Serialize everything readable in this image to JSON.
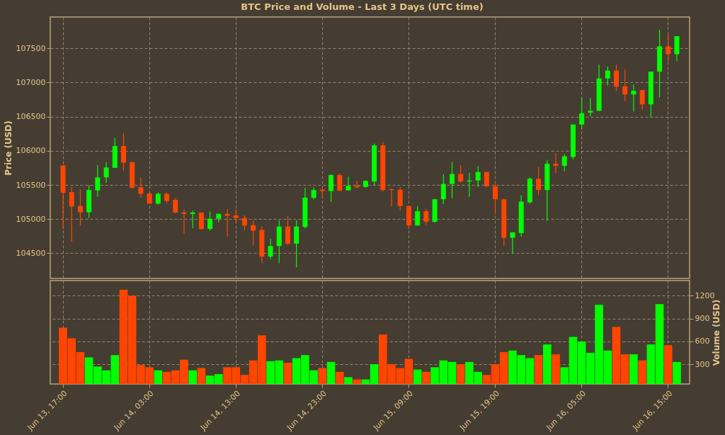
{
  "chart_data": [
    {
      "type": "candlestick",
      "title": "BTC Price and Volume - Last 3 Days (UTC time)",
      "ylabel": "Price (USD)",
      "ohlc": [
        [
          105785,
          105790,
          104860,
          105385
        ],
        [
          105395,
          105470,
          104665,
          105185
        ],
        [
          105190,
          105435,
          104900,
          105100
        ],
        [
          105100,
          105495,
          105015,
          105425
        ],
        [
          105420,
          105790,
          105325,
          105610
        ],
        [
          105610,
          105835,
          105530,
          105755
        ],
        [
          105750,
          106185,
          105750,
          106070
        ],
        [
          106070,
          106255,
          105710,
          105825
        ],
        [
          105835,
          105835,
          105450,
          105455
        ],
        [
          105465,
          105605,
          105315,
          105370
        ],
        [
          105375,
          105375,
          105225,
          105225
        ],
        [
          105225,
          105390,
          105210,
          105370
        ],
        [
          105370,
          105390,
          105230,
          105265
        ],
        [
          105280,
          105310,
          105085,
          105095
        ],
        [
          105095,
          105140,
          104790,
          105075
        ],
        [
          105075,
          105125,
          104865,
          105095
        ],
        [
          105095,
          105095,
          104845,
          104855
        ],
        [
          104855,
          105110,
          104830,
          105005
        ],
        [
          105005,
          105085,
          104950,
          105075
        ],
        [
          105075,
          105140,
          104745,
          105050
        ],
        [
          105055,
          105140,
          104935,
          105015
        ],
        [
          105015,
          105055,
          104835,
          104905
        ],
        [
          104910,
          104975,
          104615,
          104830
        ],
        [
          104840,
          104890,
          104355,
          104450
        ],
        [
          104450,
          104715,
          104415,
          104605
        ],
        [
          104605,
          104985,
          104355,
          104890
        ],
        [
          104890,
          105045,
          104620,
          104640
        ],
        [
          104640,
          104980,
          104290,
          104890
        ],
        [
          104885,
          105455,
          104865,
          105315
        ],
        [
          105310,
          105465,
          105290,
          105425
        ],
        [
          105430,
          105455,
          105315,
          105410
        ],
        [
          105410,
          105655,
          105250,
          105645
        ],
        [
          105645,
          105670,
          105415,
          105415
        ],
        [
          105420,
          105620,
          105420,
          105485
        ],
        [
          105485,
          105560,
          105455,
          105465
        ],
        [
          105470,
          105565,
          105465,
          105560
        ],
        [
          105550,
          106105,
          105500,
          106080
        ],
        [
          106080,
          106130,
          105405,
          105425
        ],
        [
          105435,
          105450,
          105185,
          105425
        ],
        [
          105430,
          105470,
          105130,
          105190
        ],
        [
          105190,
          105190,
          104855,
          104905
        ],
        [
          104905,
          105185,
          104905,
          105115
        ],
        [
          105115,
          105150,
          104915,
          104960
        ],
        [
          104960,
          105290,
          104945,
          105290
        ],
        [
          105290,
          105655,
          105220,
          105515
        ],
        [
          105515,
          105835,
          105305,
          105660
        ],
        [
          105660,
          105790,
          105540,
          105550
        ],
        [
          105550,
          105680,
          105325,
          105565
        ],
        [
          105565,
          105775,
          105470,
          105690
        ],
        [
          105690,
          105690,
          105470,
          105480
        ],
        [
          105480,
          105550,
          105075,
          105290
        ],
        [
          105290,
          105290,
          104605,
          104725
        ],
        [
          104725,
          104805,
          104495,
          104805
        ],
        [
          104795,
          105350,
          104745,
          105255
        ],
        [
          105245,
          105610,
          105225,
          105590
        ],
        [
          105590,
          105760,
          105350,
          105425
        ],
        [
          105425,
          105865,
          104970,
          105810
        ],
        [
          105810,
          105965,
          105675,
          105780
        ],
        [
          105780,
          105955,
          105700,
          105920
        ],
        [
          105910,
          106385,
          105875,
          106385
        ],
        [
          106385,
          106775,
          106315,
          106550
        ],
        [
          106560,
          106775,
          106505,
          106585
        ],
        [
          106585,
          107260,
          106585,
          107060
        ],
        [
          107060,
          107235,
          106955,
          107175
        ],
        [
          107175,
          107260,
          106870,
          106940
        ],
        [
          106945,
          107190,
          106730,
          106825
        ],
        [
          106825,
          106975,
          106575,
          106880
        ],
        [
          106890,
          106890,
          106595,
          106680
        ],
        [
          106680,
          107160,
          106500,
          107160
        ],
        [
          107160,
          107775,
          106785,
          107530
        ],
        [
          107530,
          107720,
          107305,
          107415
        ],
        [
          107415,
          107680,
          107310,
          107680
        ]
      ],
      "colors": [
        "#ff4500",
        "#ff4500",
        "#ff4500",
        "#00ff00",
        "#00ff00",
        "#00ff00",
        "#00ff00",
        "#ff4500",
        "#ff4500",
        "#ff4500",
        "#ff4500",
        "#00ff00",
        "#ff4500",
        "#ff4500",
        "#ff4500",
        "#00ff00",
        "#ff4500",
        "#00ff00",
        "#00ff00",
        "#ff4500",
        "#ff4500",
        "#ff4500",
        "#ff4500",
        "#ff4500",
        "#00ff00",
        "#00ff00",
        "#ff4500",
        "#00ff00",
        "#00ff00",
        "#00ff00",
        "#ff4500",
        "#00ff00",
        "#ff4500",
        "#00ff00",
        "#ff4500",
        "#00ff00",
        "#00ff00",
        "#ff4500",
        "#ff4500",
        "#ff4500",
        "#ff4500",
        "#00ff00",
        "#ff4500",
        "#00ff00",
        "#00ff00",
        "#00ff00",
        "#ff4500",
        "#00ff00",
        "#00ff00",
        "#ff4500",
        "#ff4500",
        "#ff4500",
        "#00ff00",
        "#00ff00",
        "#00ff00",
        "#ff4500",
        "#00ff00",
        "#ff4500",
        "#00ff00",
        "#00ff00",
        "#00ff00",
        "#00ff00",
        "#00ff00",
        "#00ff00",
        "#ff4500",
        "#ff4500",
        "#00ff00",
        "#ff4500",
        "#00ff00",
        "#00ff00",
        "#ff4500",
        "#00ff00"
      ],
      "ylim": [
        104130,
        107960
      ],
      "yticks": [
        104500,
        105000,
        105500,
        106000,
        106500,
        107000,
        107500
      ],
      "grid": true,
      "tick_labels": "y"
    },
    {
      "type": "bar",
      "ylabel": "Volume (USD)",
      "categories": [
        "Jun 13, 17:00",
        null,
        null,
        null,
        null,
        null,
        null,
        null,
        null,
        null,
        "Jun 14, 03:00",
        null,
        null,
        null,
        null,
        null,
        null,
        null,
        null,
        null,
        "Jun 14, 13:00",
        null,
        null,
        null,
        null,
        null,
        null,
        null,
        null,
        null,
        "Jun 14, 23:00",
        null,
        null,
        null,
        null,
        null,
        null,
        null,
        null,
        null,
        "Jun 15, 09:00",
        null,
        null,
        null,
        null,
        null,
        null,
        null,
        null,
        null,
        "Jun 15, 19:00",
        null,
        null,
        null,
        null,
        null,
        null,
        null,
        null,
        null,
        "Jun 16, 05:00",
        null,
        null,
        null,
        null,
        null,
        null,
        null,
        null,
        null,
        "Jun 16, 15:00",
        null
      ],
      "values": [
        780,
        640,
        460,
        390,
        270,
        220,
        420,
        1280,
        1200,
        290,
        260,
        220,
        200,
        220,
        360,
        220,
        250,
        150,
        170,
        260,
        260,
        160,
        350,
        680,
        340,
        350,
        320,
        380,
        420,
        220,
        250,
        330,
        200,
        130,
        100,
        100,
        300,
        690,
        300,
        250,
        370,
        230,
        200,
        260,
        350,
        330,
        300,
        330,
        200,
        160,
        300,
        460,
        480,
        420,
        380,
        420,
        560,
        430,
        260,
        660,
        600,
        450,
        1080,
        480,
        790,
        430,
        430,
        350,
        560,
        1090,
        550,
        330
      ],
      "colors": [
        "#ff4500",
        "#ff4500",
        "#ff4500",
        "#00ff00",
        "#00ff00",
        "#00ff00",
        "#00ff00",
        "#ff4500",
        "#ff4500",
        "#ff4500",
        "#ff4500",
        "#00ff00",
        "#ff4500",
        "#ff4500",
        "#ff4500",
        "#00ff00",
        "#ff4500",
        "#00ff00",
        "#00ff00",
        "#ff4500",
        "#ff4500",
        "#ff4500",
        "#ff4500",
        "#ff4500",
        "#00ff00",
        "#00ff00",
        "#ff4500",
        "#00ff00",
        "#00ff00",
        "#00ff00",
        "#ff4500",
        "#00ff00",
        "#ff4500",
        "#00ff00",
        "#ff4500",
        "#00ff00",
        "#00ff00",
        "#ff4500",
        "#ff4500",
        "#ff4500",
        "#ff4500",
        "#00ff00",
        "#ff4500",
        "#00ff00",
        "#00ff00",
        "#00ff00",
        "#ff4500",
        "#00ff00",
        "#00ff00",
        "#ff4500",
        "#ff4500",
        "#ff4500",
        "#00ff00",
        "#00ff00",
        "#00ff00",
        "#ff4500",
        "#00ff00",
        "#ff4500",
        "#00ff00",
        "#00ff00",
        "#00ff00",
        "#00ff00",
        "#00ff00",
        "#00ff00",
        "#ff4500",
        "#ff4500",
        "#00ff00",
        "#ff4500",
        "#00ff00",
        "#00ff00",
        "#ff4500",
        "#00ff00"
      ],
      "ylim": [
        40,
        1400
      ],
      "yticks": [
        300,
        600,
        900,
        1200
      ],
      "grid": true
    }
  ]
}
